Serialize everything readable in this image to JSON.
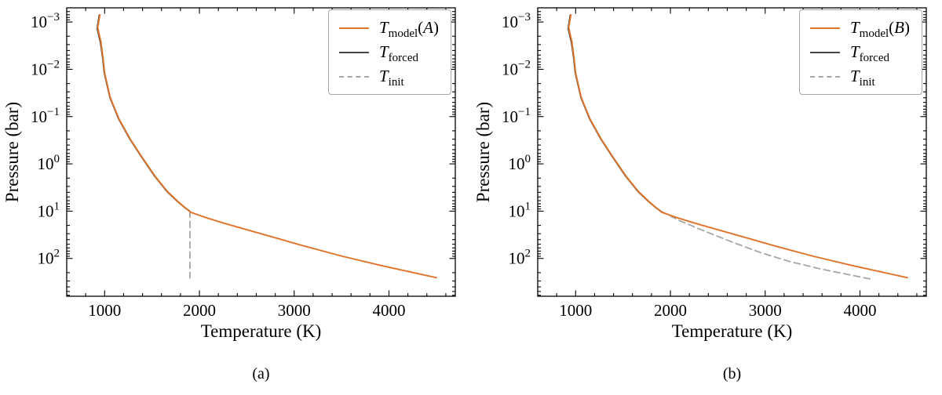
{
  "chart_data": [
    {
      "id": "a",
      "type": "line",
      "caption": "(a)",
      "xlabel": "Temperature (K)",
      "ylabel": "Pressure (bar)",
      "x_range": [
        600,
        4700
      ],
      "x_ticks": [
        1000,
        2000,
        3000,
        4000
      ],
      "x_minor_step": 200,
      "y_scale": "log",
      "y_inverted": true,
      "y_log_exp_range": [
        -3.3,
        2.8
      ],
      "y_tick_exps": [
        -3,
        -2,
        -1,
        0,
        1,
        2
      ],
      "grid": false,
      "legend_position": "upper right",
      "legend_order": [
        "T_model_A",
        "T_forced",
        "T_init"
      ],
      "series": [
        {
          "name": "T_forced",
          "legend": {
            "base": "T",
            "sub": "forced",
            "arg": ""
          },
          "color": "#474747",
          "style": "solid",
          "width": 2.0,
          "points": [
            [
              944,
              0.00072
            ],
            [
              921,
              0.00135
            ],
            [
              956,
              0.0027
            ],
            [
              981,
              0.006
            ],
            [
              997,
              0.012
            ],
            [
              1057,
              0.04
            ],
            [
              1147,
              0.11
            ],
            [
              1267,
              0.3
            ],
            [
              1397,
              0.75
            ],
            [
              1527,
              1.8
            ],
            [
              1657,
              3.8
            ],
            [
              1768,
              6.2
            ],
            [
              1845,
              8.4
            ],
            [
              1898,
              10
            ]
          ]
        },
        {
          "name": "T_init",
          "legend": {
            "base": "T",
            "sub": "init",
            "arg": ""
          },
          "color": "#a6a6a6",
          "style": "dashed",
          "width": 1.8,
          "points": [
            [
              1900,
              10
            ],
            [
              1900,
              260
            ]
          ]
        },
        {
          "name": "T_model_A",
          "legend": {
            "base": "T",
            "sub": "model",
            "arg": "A"
          },
          "color": "#e07428",
          "style": "solid",
          "width": 1.9,
          "points": [
            [
              950,
              0.0007
            ],
            [
              926,
              0.0013
            ],
            [
              960,
              0.0026
            ],
            [
              984,
              0.006
            ],
            [
              1000,
              0.012
            ],
            [
              1060,
              0.04
            ],
            [
              1150,
              0.11
            ],
            [
              1270,
              0.3
            ],
            [
              1400,
              0.75
            ],
            [
              1530,
              1.8
            ],
            [
              1660,
              3.8
            ],
            [
              1785,
              6.6
            ],
            [
              1905,
              10.5
            ],
            [
              2060,
              13.5
            ],
            [
              2260,
              18
            ],
            [
              2510,
              25
            ],
            [
              2810,
              37
            ],
            [
              3110,
              55
            ],
            [
              3510,
              90
            ],
            [
              3910,
              140
            ],
            [
              4210,
              190
            ],
            [
              4500,
              255
            ]
          ]
        }
      ]
    },
    {
      "id": "b",
      "type": "line",
      "caption": "(b)",
      "xlabel": "Temperature (K)",
      "ylabel": "Pressure (bar)",
      "x_range": [
        600,
        4700
      ],
      "x_ticks": [
        1000,
        2000,
        3000,
        4000
      ],
      "x_minor_step": 200,
      "y_scale": "log",
      "y_inverted": true,
      "y_log_exp_range": [
        -3.3,
        2.8
      ],
      "y_tick_exps": [
        -3,
        -2,
        -1,
        0,
        1,
        2
      ],
      "grid": false,
      "legend_position": "upper right",
      "legend_order": [
        "T_model_B",
        "T_forced",
        "T_init"
      ],
      "series": [
        {
          "name": "T_forced",
          "legend": {
            "base": "T",
            "sub": "forced",
            "arg": ""
          },
          "color": "#474747",
          "style": "solid",
          "width": 2.0,
          "points": [
            [
              944,
              0.00072
            ],
            [
              921,
              0.00135
            ],
            [
              956,
              0.0027
            ],
            [
              981,
              0.006
            ],
            [
              997,
              0.012
            ],
            [
              1057,
              0.04
            ],
            [
              1147,
              0.11
            ],
            [
              1267,
              0.3
            ],
            [
              1397,
              0.75
            ],
            [
              1527,
              1.8
            ],
            [
              1657,
              3.8
            ],
            [
              1768,
              6.2
            ],
            [
              1845,
              8.4
            ],
            [
              1898,
              10
            ]
          ]
        },
        {
          "name": "T_init",
          "legend": {
            "base": "T",
            "sub": "init",
            "arg": ""
          },
          "color": "#a6a6a6",
          "style": "dashed",
          "width": 1.8,
          "points": [
            [
              1900,
              10
            ],
            [
              2100,
              16
            ],
            [
              2350,
              26
            ],
            [
              2650,
              45
            ],
            [
              2950,
              75
            ],
            [
              3250,
              115
            ],
            [
              3600,
              170
            ],
            [
              3950,
              235
            ],
            [
              4120,
              275
            ]
          ]
        },
        {
          "name": "T_model_B",
          "legend": {
            "base": "T",
            "sub": "model",
            "arg": "B"
          },
          "color": "#e07428",
          "style": "solid",
          "width": 1.9,
          "points": [
            [
              950,
              0.0007
            ],
            [
              926,
              0.0013
            ],
            [
              960,
              0.0026
            ],
            [
              984,
              0.006
            ],
            [
              1000,
              0.012
            ],
            [
              1060,
              0.04
            ],
            [
              1150,
              0.11
            ],
            [
              1270,
              0.3
            ],
            [
              1400,
              0.75
            ],
            [
              1530,
              1.8
            ],
            [
              1660,
              3.8
            ],
            [
              1785,
              6.6
            ],
            [
              1905,
              10.5
            ],
            [
              2060,
              13.5
            ],
            [
              2260,
              18
            ],
            [
              2510,
              25
            ],
            [
              2810,
              37
            ],
            [
              3110,
              55
            ],
            [
              3510,
              90
            ],
            [
              3910,
              140
            ],
            [
              4210,
              190
            ],
            [
              4500,
              255
            ]
          ]
        }
      ]
    }
  ]
}
